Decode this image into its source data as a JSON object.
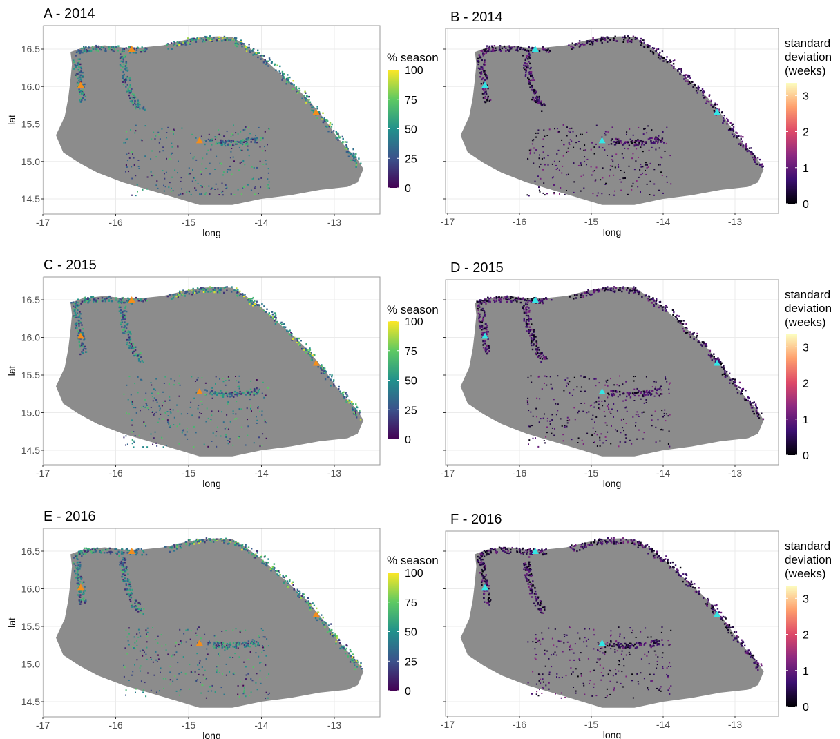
{
  "colors": {
    "land": "#8c8c8c",
    "land_light": "#a6a6a6",
    "site_marker_left": "#f28e1c",
    "site_marker_right": "#33e6e6",
    "viridis": [
      "#440154",
      "#3b528b",
      "#21918c",
      "#5ec962",
      "#fde725"
    ],
    "magma": [
      "#000004",
      "#3b0f70",
      "#8c2981",
      "#de4968",
      "#fe9f6d",
      "#fcfdbf"
    ]
  },
  "axes": {
    "x_label": "long",
    "y_label": "lat",
    "x_ticks": [
      "-17",
      "-16",
      "-15",
      "-14",
      "-13"
    ],
    "y_ticks": [
      "16.5",
      "16.0",
      "15.5",
      "15.0",
      "14.5"
    ],
    "x_values": [
      -17,
      -16,
      -15,
      -14,
      -13
    ],
    "y_values": [
      16.5,
      16.0,
      15.5,
      15.0,
      14.5
    ]
  },
  "legends": {
    "season": {
      "title": "% season",
      "ticks": [
        "100",
        "75",
        "50",
        "25",
        "0"
      ]
    },
    "sd": {
      "title_lines": [
        "standard",
        "deviation",
        "(weeks)"
      ],
      "ticks": [
        "3",
        "2",
        "1",
        "0"
      ]
    }
  },
  "sites": [
    {
      "long": -15.78,
      "lat": 16.5
    },
    {
      "long": -16.48,
      "lat": 16.02
    },
    {
      "long": -13.25,
      "lat": 15.66
    },
    {
      "long": -14.85,
      "lat": 15.28
    }
  ],
  "panels": [
    {
      "id": "A",
      "title": "A - 2014",
      "variable": "season",
      "shows_y_labels": true
    },
    {
      "id": "B",
      "title": "B - 2014",
      "variable": "sd",
      "shows_y_labels": false
    },
    {
      "id": "C",
      "title": "C - 2015",
      "variable": "season",
      "shows_y_labels": true
    },
    {
      "id": "D",
      "title": "D - 2015",
      "variable": "sd",
      "shows_y_labels": false
    },
    {
      "id": "E",
      "title": "E - 2016",
      "variable": "season",
      "shows_y_labels": true
    },
    {
      "id": "F",
      "title": "F - 2016",
      "variable": "sd",
      "shows_y_labels": false
    }
  ]
}
